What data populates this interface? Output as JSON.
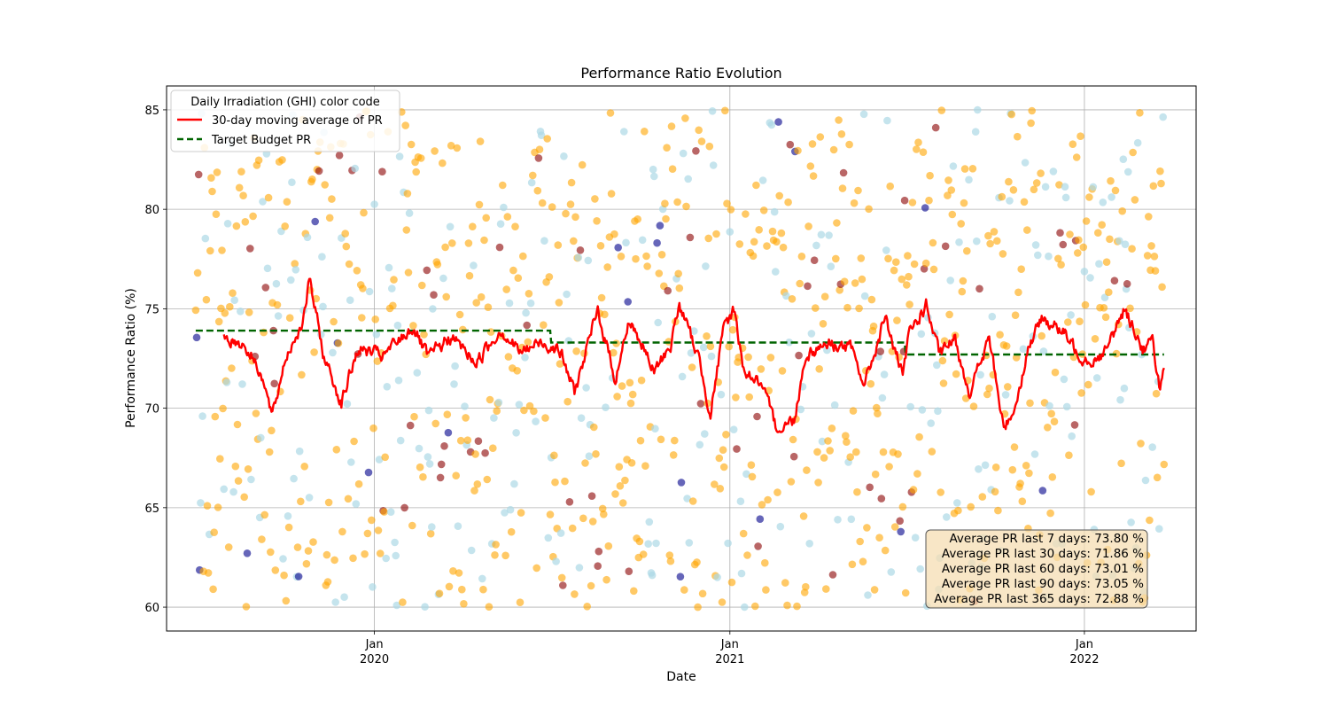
{
  "chart_data": {
    "type": "scatter",
    "title": "Performance Ratio Evolution",
    "xlabel": "Date",
    "ylabel": "Performance Ratio (%)",
    "xlim": [
      "2019-06-01",
      "2022-04-26"
    ],
    "ylim": [
      58.8,
      86.2
    ],
    "grid": true,
    "legend_placement": "top-left",
    "y_ticks": [
      60,
      65,
      70,
      75,
      80,
      85
    ],
    "x_ticks": [
      {
        "date": "2020-01-01",
        "month": "Jan",
        "year": "2020"
      },
      {
        "date": "2021-01-01",
        "month": "Jan",
        "year": "2021"
      },
      {
        "date": "2022-01-01",
        "month": "Jan",
        "year": "2022"
      }
    ],
    "legend": {
      "title": "Daily Irradiation (GHI) color code",
      "entries": [
        {
          "label": "30-day moving average of PR",
          "color": "#ff0000",
          "style": "solid"
        },
        {
          "label": "Target Budget PR",
          "color": "#006400",
          "style": "dashed"
        }
      ]
    },
    "scatter": {
      "start": "2019-07-01",
      "end": "2022-03-24",
      "y_min": 60,
      "y_max": 85,
      "colors": [
        "#add8e6",
        "#ffa500",
        "#8b0000",
        "#00008b"
      ]
    },
    "target_budget": [
      {
        "from": "2019-07-01",
        "to": "2020-06-30",
        "value": 73.9
      },
      {
        "from": "2020-07-01",
        "to": "2021-06-30",
        "value": 73.3
      },
      {
        "from": "2021-07-01",
        "to": "2022-03-24",
        "value": 72.7
      }
    ],
    "moving_average": {
      "start": "2019-07-30",
      "end": "2022-03-24",
      "min": 68.8,
      "max": 76.5,
      "keypoints": [
        [
          "2019-07-30",
          73.6
        ],
        [
          "2019-08-20",
          73.2
        ],
        [
          "2019-09-05",
          72.0
        ],
        [
          "2019-09-18",
          69.5
        ],
        [
          "2019-10-01",
          72.5
        ],
        [
          "2019-10-20",
          74.5
        ],
        [
          "2019-10-26",
          76.5
        ],
        [
          "2019-11-10",
          72.6
        ],
        [
          "2019-11-28",
          70.3
        ],
        [
          "2019-12-15",
          73.0
        ],
        [
          "2020-01-10",
          72.6
        ],
        [
          "2020-02-10",
          74.1
        ],
        [
          "2020-02-25",
          72.5
        ],
        [
          "2020-03-20",
          73.6
        ],
        [
          "2020-04-15",
          72.3
        ],
        [
          "2020-05-10",
          74.0
        ],
        [
          "2020-05-30",
          72.8
        ],
        [
          "2020-06-20",
          73.3
        ],
        [
          "2020-07-01",
          73.2
        ],
        [
          "2020-07-10",
          72.9
        ],
        [
          "2020-07-25",
          70.8
        ],
        [
          "2020-08-18",
          74.9
        ],
        [
          "2020-09-05",
          71.5
        ],
        [
          "2020-09-20",
          74.5
        ],
        [
          "2020-10-15",
          71.8
        ],
        [
          "2020-11-01",
          73.2
        ],
        [
          "2020-11-10",
          75.2
        ],
        [
          "2020-11-30",
          72.5
        ],
        [
          "2020-12-12",
          69.8
        ],
        [
          "2020-12-25",
          73.8
        ],
        [
          "2021-01-05",
          75.0
        ],
        [
          "2021-01-15",
          72.0
        ],
        [
          "2021-02-01",
          71.2
        ],
        [
          "2021-02-18",
          69.0
        ],
        [
          "2021-03-08",
          69.4
        ],
        [
          "2021-03-20",
          72.7
        ],
        [
          "2021-04-10",
          73.3
        ],
        [
          "2021-05-05",
          73.0
        ],
        [
          "2021-05-20",
          71.2
        ],
        [
          "2021-06-10",
          74.6
        ],
        [
          "2021-06-28",
          71.5
        ],
        [
          "2021-07-05",
          73.8
        ],
        [
          "2021-07-22",
          75.2
        ],
        [
          "2021-08-05",
          72.6
        ],
        [
          "2021-08-20",
          73.5
        ],
        [
          "2021-09-05",
          70.8
        ],
        [
          "2021-09-25",
          73.5
        ],
        [
          "2021-10-10",
          68.9
        ],
        [
          "2021-10-22",
          70.2
        ],
        [
          "2021-11-05",
          73.2
        ],
        [
          "2021-11-20",
          74.6
        ],
        [
          "2021-12-10",
          73.8
        ],
        [
          "2021-12-25",
          72.8
        ],
        [
          "2022-01-10",
          72.4
        ],
        [
          "2022-01-25",
          73.0
        ],
        [
          "2022-02-10",
          74.9
        ],
        [
          "2022-02-20",
          74.2
        ],
        [
          "2022-03-02",
          73.0
        ],
        [
          "2022-03-12",
          73.3
        ],
        [
          "2022-03-20",
          71.0
        ],
        [
          "2022-03-24",
          71.9
        ]
      ]
    },
    "stats": [
      "Average PR last 7 days: 73.80 %",
      "Average PR last 30 days: 71.86 %",
      "Average PR last 60 days: 73.01 %",
      "Average PR last 90 days: 73.05 %",
      "Average PR last 365 days: 72.88 %"
    ]
  }
}
